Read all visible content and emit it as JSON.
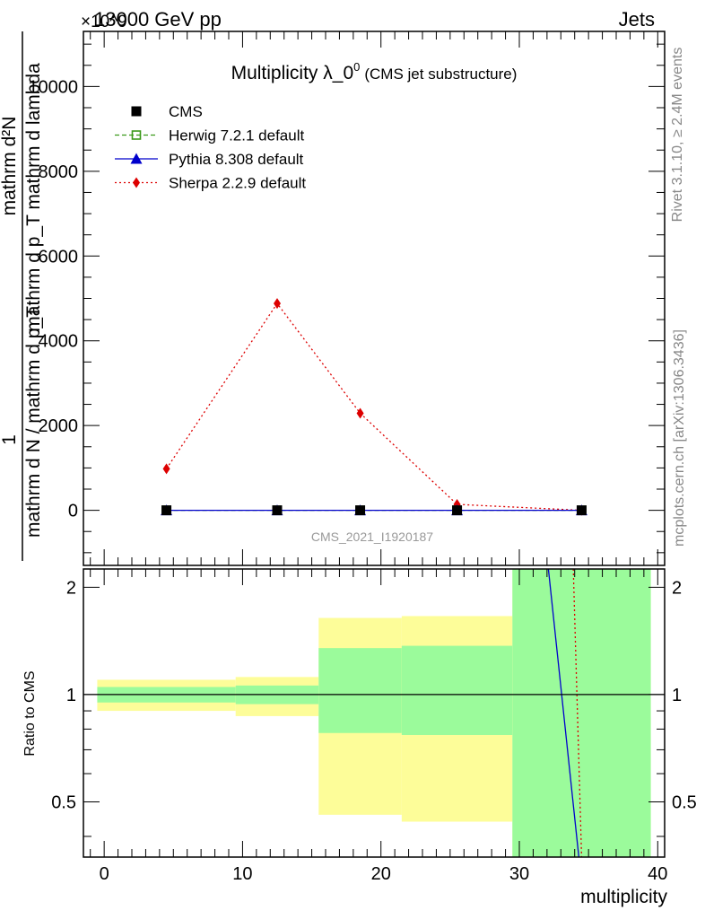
{
  "header": {
    "energy_label": "13000 GeV pp",
    "process_label": "Jets",
    "exponent_label": "×10^9"
  },
  "side_labels": {
    "rivet": "Rivet 3.1.10, ≥ 2.4M events",
    "mcplots": "mcplots.cern.ch [arXiv:1306.3436]"
  },
  "chart_data": [
    {
      "type": "line",
      "title": "Multiplicity λ_0^0 (CMS jet substructure)",
      "title_main": "Multiplicity λ_0",
      "title_sup": "0",
      "title_note": "(CMS jet substructure)",
      "watermark": "CMS_2021_I1920187",
      "ylabel": {
        "numerator_prefix": "1",
        "fraction_top": "mathrm d²N",
        "fraction_bottom": "mathrm d p_T mathrm d lambda",
        "outer_bottom": "mathrm d N / mathrm d p_T"
      },
      "xlim": [
        -1.5,
        40.5
      ],
      "ylim": [
        -1300,
        11300
      ],
      "y_scale_exponent": 9,
      "yticks": [
        0,
        2000,
        4000,
        6000,
        8000,
        10000
      ],
      "ytick_labels": [
        "0",
        "2000",
        "4000",
        "6000",
        "8000",
        "10000"
      ],
      "legend_position": "top-left",
      "legend": [
        {
          "name": "CMS",
          "color": "#000000",
          "marker": "filled-square",
          "line": "none"
        },
        {
          "name": "Herwig 7.2.1 default",
          "color": "#3b9a1a",
          "marker": "open-square",
          "line": "dashed"
        },
        {
          "name": "Pythia 8.308 default",
          "color": "#0000cc",
          "marker": "filled-triangle",
          "line": "solid"
        },
        {
          "name": "Sherpa 2.2.9 default",
          "color": "#dd0000",
          "marker": "filled-diamond",
          "line": "dotted"
        }
      ],
      "series": [
        {
          "name": "CMS",
          "x": [
            4.5,
            12.5,
            18.5,
            25.5,
            34.5
          ],
          "y": [
            0,
            0,
            0,
            0,
            0
          ]
        },
        {
          "name": "Herwig 7.2.1 default",
          "x": [
            4.5,
            12.5,
            18.5,
            25.5,
            34.5
          ],
          "y": [
            0,
            0,
            0,
            0,
            0
          ]
        },
        {
          "name": "Pythia 8.308 default",
          "x": [
            4.5,
            12.5,
            18.5,
            25.5,
            34.5
          ],
          "y": [
            0,
            0,
            0,
            0,
            0
          ]
        },
        {
          "name": "Sherpa 2.2.9 default",
          "x": [
            4.5,
            12.5,
            18.5,
            25.5,
            34.5
          ],
          "y": [
            980,
            4880,
            2290,
            140,
            0
          ]
        }
      ]
    },
    {
      "type": "area",
      "ylabel": "Ratio to CMS",
      "xlabel": "multiplicity",
      "xlim": [
        -1.5,
        40.5
      ],
      "ylim": [
        0.35,
        2.25
      ],
      "xticks": [
        0,
        10,
        20,
        30,
        40
      ],
      "xtick_labels": [
        "0",
        "10",
        "20",
        "30",
        "40"
      ],
      "yticks": [
        0.5,
        1,
        2
      ],
      "ytick_labels": [
        "0.5",
        "1",
        "2"
      ],
      "reference_line": 1,
      "bands": [
        {
          "x0": -0.5,
          "x1": 9.5,
          "stat_lo": 0.95,
          "stat_hi": 1.05,
          "total_lo": 0.9,
          "total_hi": 1.1
        },
        {
          "x0": 9.5,
          "x1": 15.5,
          "stat_lo": 0.94,
          "stat_hi": 1.06,
          "total_lo": 0.87,
          "total_hi": 1.12
        },
        {
          "x0": 15.5,
          "x1": 21.5,
          "stat_lo": 0.78,
          "stat_hi": 1.35,
          "total_lo": 0.46,
          "total_hi": 1.64
        },
        {
          "x0": 21.5,
          "x1": 29.5,
          "stat_lo": 0.77,
          "stat_hi": 1.37,
          "total_lo": 0.44,
          "total_hi": 1.66
        },
        {
          "x0": 29.5,
          "x1": 39.5,
          "stat_lo": 0.35,
          "stat_hi": 2.25,
          "total_lo": 0.35,
          "total_hi": 2.25
        }
      ],
      "band_colors": {
        "stat": "#9bfb9b",
        "total": "#fdfd99"
      },
      "series": [
        {
          "name": "Pythia 8.308 default",
          "x": [
            32.1,
            34.3
          ],
          "y": [
            2.25,
            0.35
          ]
        },
        {
          "name": "Sherpa 2.2.9 default",
          "x": [
            33.9,
            34.5
          ],
          "y": [
            2.25,
            0.35
          ]
        }
      ]
    }
  ]
}
